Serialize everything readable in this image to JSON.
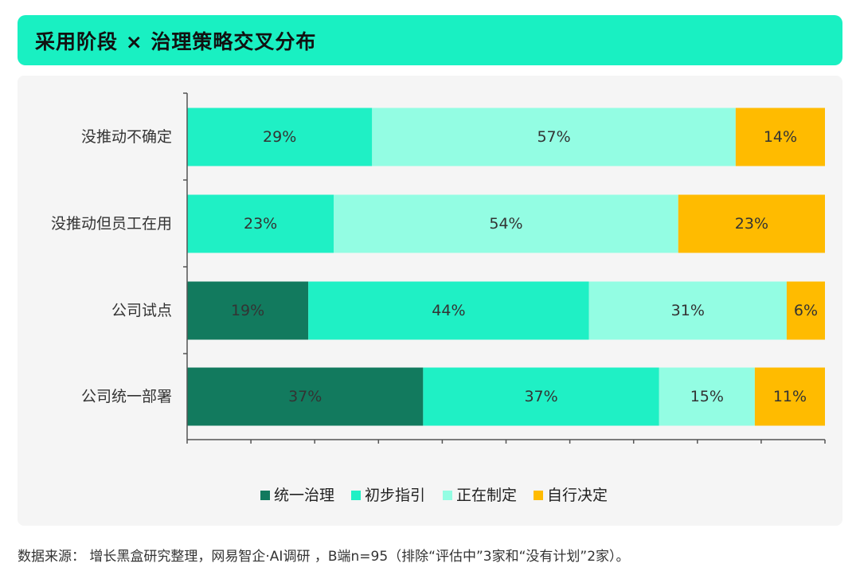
{
  "header": {
    "title": "采用阶段 × 治理策略交叉分布"
  },
  "footer": {
    "source": "数据来源： 增长黑盒研究整理，网易智企·AI调研 ，B端n=95（排除“评估中”3家和“没有计划”2家）。"
  },
  "colors": {
    "title_bar": "#19f0c2",
    "panel": "#f5f5f5",
    "series": [
      "#127a5e",
      "#1ff0c5",
      "#93fde3",
      "#ffbb00"
    ]
  },
  "chart_data": {
    "type": "bar",
    "orientation": "horizontal",
    "stacked": true,
    "percent": true,
    "categories": [
      "没推动不确定",
      "没推动但员工在用",
      "公司试点",
      "公司统一部署"
    ],
    "series": [
      {
        "name": "统一治理",
        "values": [
          0,
          0,
          19,
          37
        ],
        "labels": [
          "0%",
          "0%",
          "19%",
          "37%"
        ]
      },
      {
        "name": "初步指引",
        "values": [
          29,
          23,
          44,
          37
        ],
        "labels": [
          "29%",
          "23%",
          "44%",
          "37%"
        ]
      },
      {
        "name": "正在制定",
        "values": [
          57,
          54,
          31,
          15
        ],
        "labels": [
          "57%",
          "54%",
          "31%",
          "15%"
        ]
      },
      {
        "name": "自行决定",
        "values": [
          14,
          23,
          6,
          11
        ],
        "labels": [
          "14%",
          "23%",
          "6%",
          "11%"
        ]
      }
    ],
    "xlim": [
      0,
      100
    ],
    "grid": false,
    "legend_position": "bottom"
  }
}
